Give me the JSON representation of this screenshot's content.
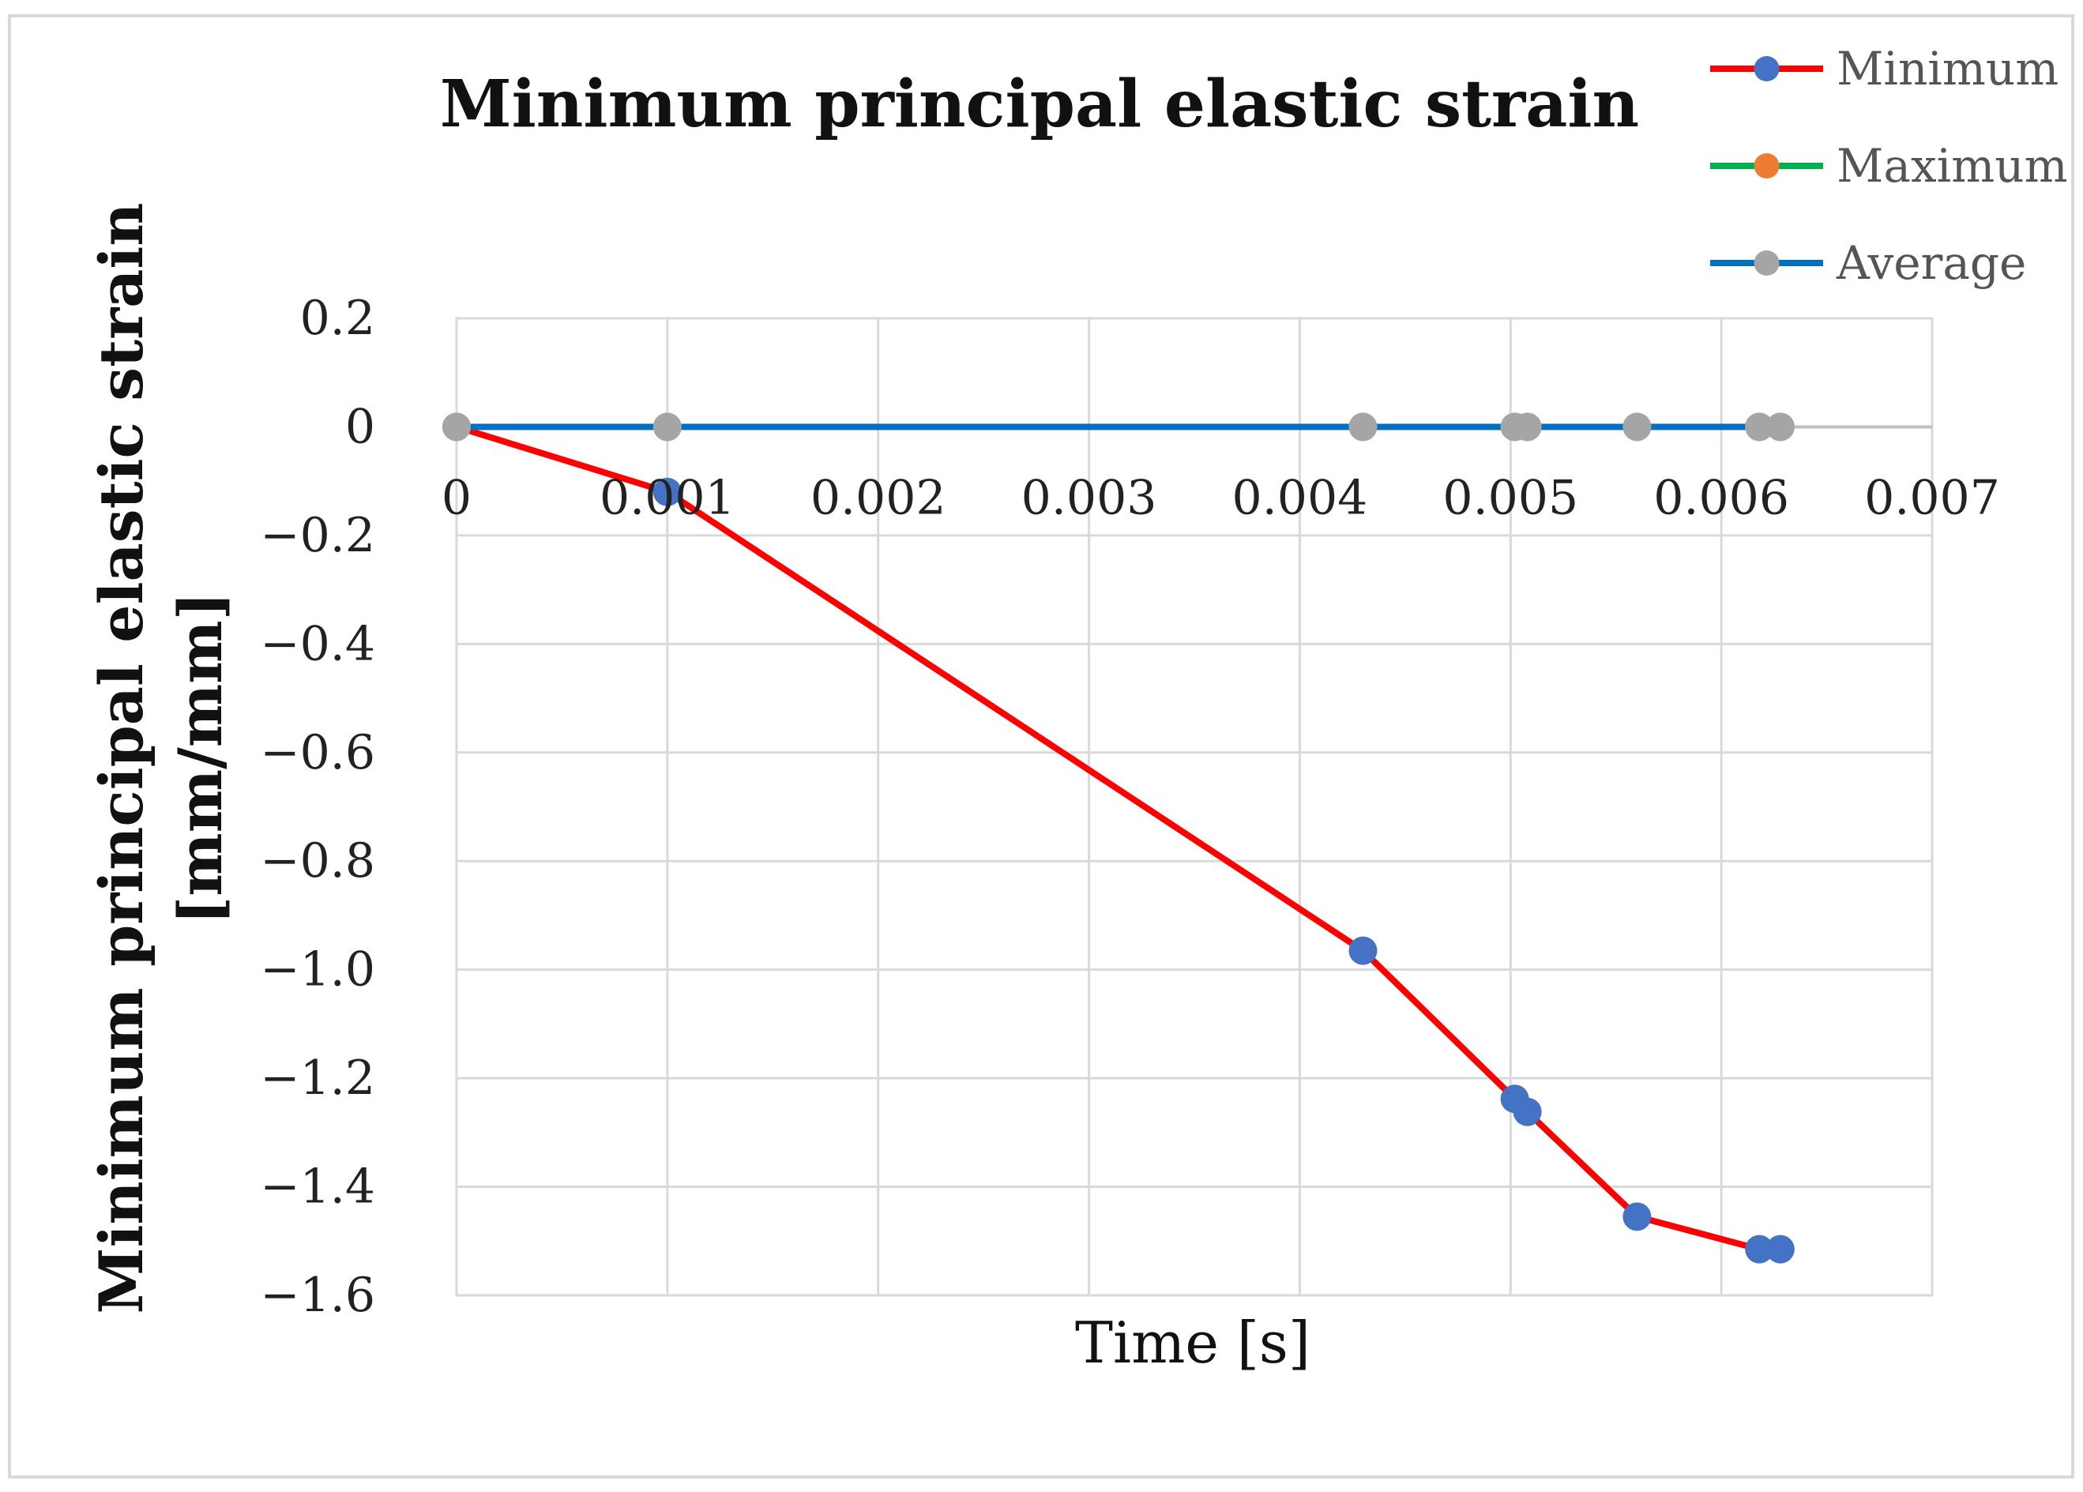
{
  "chart_data": {
    "type": "line",
    "title": "Minimum principal elastic strain",
    "xlabel": "Time [s]",
    "ylabel_line1": "Minimum principal elastic strain",
    "ylabel_line2": "[mm/mm]",
    "xlim": [
      0,
      0.007
    ],
    "ylim": [
      -1.6,
      0.2
    ],
    "xticks": [
      0,
      0.001,
      0.002,
      0.003,
      0.004,
      0.005,
      0.006,
      0.007
    ],
    "xtick_labels": [
      "0",
      "0.001",
      "0.002",
      "0.003",
      "0.004",
      "0.005",
      "0.006",
      "0.007"
    ],
    "yticks": [
      0.2,
      0,
      -0.2,
      -0.4,
      -0.6,
      -0.8,
      -1.0,
      -1.2,
      -1.4,
      -1.6
    ],
    "ytick_labels": [
      "0.2",
      "0",
      "−0.2",
      "−0.4",
      "−0.6",
      "−0.8",
      "−1.0",
      "−1.2",
      "−1.4",
      "−1.6"
    ],
    "grid": true,
    "legend_position": "top-right",
    "x": [
      0,
      0.001,
      0.0043,
      0.00502,
      0.00508,
      0.0056,
      0.00618,
      0.00628
    ],
    "series": [
      {
        "name": "Minimum",
        "line_color": "#ff0000",
        "marker_color": "#4472c4",
        "values": [
          0,
          -0.12,
          -0.965,
          -1.238,
          -1.262,
          -1.455,
          -1.515,
          -1.515
        ]
      },
      {
        "name": "Maximum",
        "line_color": "#00b050",
        "marker_color": "#ed7d31",
        "values": [
          0,
          0,
          0,
          0,
          0,
          0,
          0,
          0
        ]
      },
      {
        "name": "Average",
        "line_color": "#0070c0",
        "marker_color": "#a5a5a5",
        "values": [
          0,
          0,
          0,
          0,
          0,
          0,
          0,
          0
        ]
      }
    ]
  }
}
